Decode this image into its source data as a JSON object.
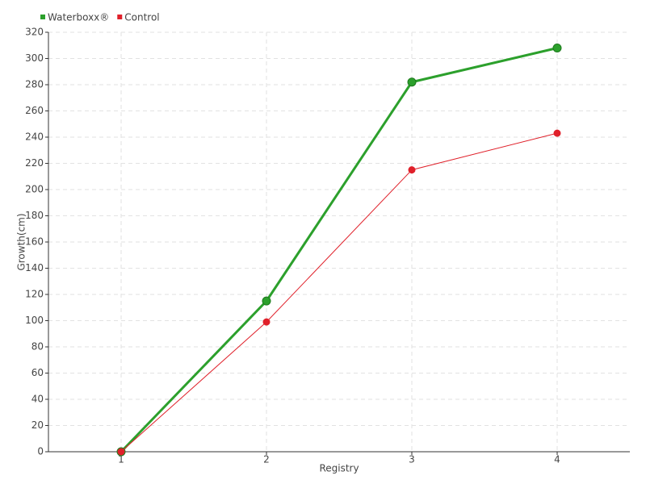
{
  "chart_data": {
    "type": "line",
    "x_label": "Registry",
    "y_label": "Growth(cm)",
    "categories": [
      "1",
      "2",
      "3",
      "4"
    ],
    "series": [
      {
        "name": "Waterboxx®",
        "color": "#2ca02c",
        "values": [
          0,
          115,
          282,
          308
        ]
      },
      {
        "name": "Control",
        "color": "#e0202a",
        "values": [
          0,
          99,
          215,
          243
        ]
      }
    ],
    "ylim": [
      0,
      320
    ],
    "yticks": [
      0,
      20,
      40,
      60,
      80,
      100,
      120,
      140,
      160,
      180,
      200,
      220,
      240,
      260,
      280,
      300,
      320
    ],
    "grid": true,
    "legend": "top-left"
  }
}
